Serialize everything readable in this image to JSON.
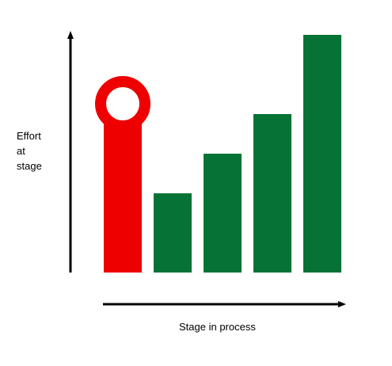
{
  "chart_data": {
    "type": "bar",
    "ylabel_lines": [
      "Effort",
      "at",
      "stage"
    ],
    "xlabel": "Stage in process",
    "grid": false,
    "legend": "none",
    "ylim": [
      0,
      30
    ],
    "values": [
      20,
      10,
      15,
      20,
      30
    ],
    "colors": [
      "#ee0000",
      "#047335",
      "#047335",
      "#047335",
      "#047335"
    ],
    "highlight_index": 0,
    "highlight_marker": "ring-on-bar"
  }
}
